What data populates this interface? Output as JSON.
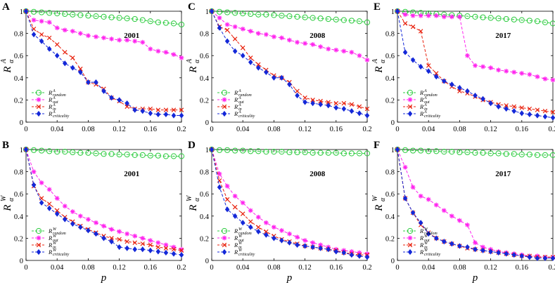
{
  "figure": {
    "xlabel": "p",
    "xticks": [
      "0",
      "0.04",
      "0.08",
      "0.12",
      "0.16",
      "0.2"
    ],
    "yticks": [
      "0",
      "0.2",
      "0.4",
      "0.6",
      "0.8",
      "1"
    ],
    "colors": {
      "random": "#2ecc40",
      "out": "#ff22ee",
      "in": "#e8200c",
      "criticality": "#1428d8"
    }
  },
  "chart_data": [
    {
      "panel": "A",
      "type": "line",
      "year": "2001",
      "ylabel": "R",
      "ylabel_sub": "α",
      "ylabel_sup": "A",
      "xlim": [
        0,
        0.2
      ],
      "ylim": [
        0,
        1
      ],
      "x": [
        0,
        0.01,
        0.02,
        0.03,
        0.04,
        0.05,
        0.06,
        0.07,
        0.08,
        0.09,
        0.1,
        0.11,
        0.12,
        0.13,
        0.14,
        0.15,
        0.16,
        0.17,
        0.18,
        0.19,
        0.2
      ],
      "series": [
        {
          "key": "random",
          "name": "R^A_random",
          "label_main": "R",
          "label_sup": "A",
          "label_sub": "random",
          "values": [
            1,
            0.995,
            0.99,
            0.985,
            0.98,
            0.975,
            0.97,
            0.965,
            0.96,
            0.955,
            0.95,
            0.945,
            0.94,
            0.935,
            0.93,
            0.92,
            0.91,
            0.9,
            0.895,
            0.89,
            0.88
          ]
        },
        {
          "key": "out",
          "name": "R^A_out",
          "label_main": "R",
          "label_sup": "A",
          "label_sub": "out",
          "values": [
            1,
            0.92,
            0.91,
            0.9,
            0.85,
            0.83,
            0.82,
            0.8,
            0.78,
            0.77,
            0.76,
            0.75,
            0.74,
            0.74,
            0.73,
            0.72,
            0.66,
            0.64,
            0.63,
            0.61,
            0.58
          ]
        },
        {
          "key": "in",
          "name": "R^A_in",
          "label_main": "R",
          "label_sup": "A",
          "label_sub": "in",
          "values": [
            1,
            0.84,
            0.79,
            0.76,
            0.7,
            0.63,
            0.58,
            0.48,
            0.36,
            0.34,
            0.3,
            0.22,
            0.19,
            0.14,
            0.12,
            0.12,
            0.12,
            0.11,
            0.11,
            0.11,
            0.11
          ]
        },
        {
          "key": "criticality",
          "name": "R^A_criticality",
          "label_main": "R",
          "label_sup": "A",
          "label_sub": "criticality",
          "values": [
            1,
            0.79,
            0.73,
            0.66,
            0.6,
            0.53,
            0.49,
            0.45,
            0.36,
            0.36,
            0.28,
            0.22,
            0.2,
            0.17,
            0.11,
            0.1,
            0.08,
            0.07,
            0.07,
            0.06,
            0.06
          ]
        }
      ]
    },
    {
      "panel": "B",
      "type": "line",
      "year": "2001",
      "ylabel": "R",
      "ylabel_sub": "α",
      "ylabel_sup": "W",
      "xlim": [
        0,
        0.2
      ],
      "ylim": [
        0,
        1
      ],
      "x": [
        0,
        0.01,
        0.02,
        0.03,
        0.04,
        0.05,
        0.06,
        0.07,
        0.08,
        0.09,
        0.1,
        0.11,
        0.12,
        0.13,
        0.14,
        0.15,
        0.16,
        0.17,
        0.18,
        0.19,
        0.2
      ],
      "series": [
        {
          "key": "random",
          "name": "R^W_random",
          "label_main": "R",
          "label_sup": "W",
          "label_sub": "random",
          "values": [
            1,
            0.995,
            0.99,
            0.985,
            0.98,
            0.98,
            0.975,
            0.97,
            0.97,
            0.965,
            0.96,
            0.96,
            0.955,
            0.955,
            0.95,
            0.95,
            0.945,
            0.945,
            0.94,
            0.94,
            0.94
          ]
        },
        {
          "key": "out",
          "name": "R^W_out",
          "label_main": "R",
          "label_sup": "W",
          "label_sub": "out",
          "values": [
            1,
            0.8,
            0.7,
            0.64,
            0.56,
            0.49,
            0.44,
            0.4,
            0.37,
            0.34,
            0.31,
            0.28,
            0.26,
            0.24,
            0.22,
            0.2,
            0.18,
            0.16,
            0.14,
            0.12,
            0.1
          ]
        },
        {
          "key": "in",
          "name": "R^W_in",
          "label_main": "R",
          "label_sup": "W",
          "label_sub": "in",
          "values": [
            1,
            0.67,
            0.56,
            0.51,
            0.45,
            0.39,
            0.35,
            0.31,
            0.28,
            0.25,
            0.22,
            0.2,
            0.19,
            0.17,
            0.16,
            0.15,
            0.14,
            0.12,
            0.11,
            0.1,
            0.09
          ]
        },
        {
          "key": "criticality",
          "name": "R^W_criticality",
          "label_main": "R",
          "label_sup": "W",
          "label_sub": "criticality",
          "values": [
            1,
            0.68,
            0.52,
            0.47,
            0.42,
            0.37,
            0.33,
            0.3,
            0.27,
            0.24,
            0.2,
            0.17,
            0.12,
            0.11,
            0.1,
            0.1,
            0.09,
            0.08,
            0.07,
            0.06,
            0.05
          ]
        }
      ]
    },
    {
      "panel": "C",
      "type": "line",
      "year": "2008",
      "ylabel": "R",
      "ylabel_sub": "α",
      "ylabel_sup": "A",
      "xlim": [
        0,
        0.2
      ],
      "ylim": [
        0,
        1
      ],
      "x": [
        0,
        0.01,
        0.02,
        0.03,
        0.04,
        0.05,
        0.06,
        0.07,
        0.08,
        0.09,
        0.1,
        0.11,
        0.12,
        0.13,
        0.14,
        0.15,
        0.16,
        0.17,
        0.18,
        0.19,
        0.2
      ],
      "series": [
        {
          "key": "random",
          "name": "R^A_random",
          "label_main": "R",
          "label_sup": "A",
          "label_sub": "random",
          "values": [
            1,
            0.995,
            0.99,
            0.985,
            0.98,
            0.975,
            0.97,
            0.97,
            0.965,
            0.96,
            0.955,
            0.95,
            0.945,
            0.94,
            0.935,
            0.93,
            0.925,
            0.92,
            0.915,
            0.91,
            0.9
          ]
        },
        {
          "key": "out",
          "name": "R^A_out",
          "label_main": "R",
          "label_sup": "A",
          "label_sub": "out",
          "values": [
            1,
            0.94,
            0.88,
            0.86,
            0.84,
            0.82,
            0.8,
            0.79,
            0.77,
            0.76,
            0.74,
            0.72,
            0.71,
            0.7,
            0.68,
            0.66,
            0.65,
            0.64,
            0.63,
            0.6,
            0.56
          ]
        },
        {
          "key": "in",
          "name": "R^A_in",
          "label_main": "R",
          "label_sup": "A",
          "label_sub": "in",
          "values": [
            1,
            0.86,
            0.83,
            0.75,
            0.67,
            0.58,
            0.52,
            0.47,
            0.42,
            0.4,
            0.36,
            0.28,
            0.22,
            0.2,
            0.19,
            0.18,
            0.17,
            0.17,
            0.16,
            0.14,
            0.12
          ]
        },
        {
          "key": "criticality",
          "name": "R^A_criticality",
          "label_main": "R",
          "label_sup": "A",
          "label_sub": "criticality",
          "values": [
            1,
            0.85,
            0.73,
            0.64,
            0.6,
            0.54,
            0.49,
            0.45,
            0.4,
            0.4,
            0.34,
            0.24,
            0.18,
            0.17,
            0.16,
            0.15,
            0.13,
            0.12,
            0.1,
            0.08,
            0.06
          ]
        }
      ]
    },
    {
      "panel": "D",
      "type": "line",
      "year": "2008",
      "ylabel": "R",
      "ylabel_sub": "α",
      "ylabel_sup": "W",
      "xlim": [
        0,
        0.2
      ],
      "ylim": [
        0,
        1
      ],
      "x": [
        0,
        0.01,
        0.02,
        0.03,
        0.04,
        0.05,
        0.06,
        0.07,
        0.08,
        0.09,
        0.1,
        0.11,
        0.12,
        0.13,
        0.14,
        0.15,
        0.16,
        0.17,
        0.18,
        0.19,
        0.2
      ],
      "series": [
        {
          "key": "random",
          "name": "R^W_random",
          "label_main": "R",
          "label_sup": "W",
          "label_sub": "random",
          "values": [
            1,
            0.995,
            0.995,
            0.99,
            0.99,
            0.985,
            0.985,
            0.98,
            0.98,
            0.98,
            0.975,
            0.975,
            0.975,
            0.97,
            0.97,
            0.97,
            0.97,
            0.965,
            0.965,
            0.965,
            0.965
          ]
        },
        {
          "key": "out",
          "name": "R^W_out",
          "label_main": "R",
          "label_sup": "W",
          "label_sub": "out",
          "values": [
            1,
            0.78,
            0.67,
            0.58,
            0.52,
            0.45,
            0.39,
            0.34,
            0.3,
            0.27,
            0.24,
            0.21,
            0.18,
            0.16,
            0.14,
            0.12,
            0.1,
            0.09,
            0.08,
            0.07,
            0.06
          ]
        },
        {
          "key": "in",
          "name": "R^W_in",
          "label_main": "R",
          "label_sup": "W",
          "label_sub": "in",
          "values": [
            1,
            0.72,
            0.55,
            0.48,
            0.42,
            0.35,
            0.3,
            0.26,
            0.22,
            0.19,
            0.17,
            0.15,
            0.13,
            0.12,
            0.11,
            0.1,
            0.09,
            0.07,
            0.06,
            0.05,
            0.05
          ]
        },
        {
          "key": "criticality",
          "name": "R^W_criticality",
          "label_main": "R",
          "label_sup": "W",
          "label_sub": "criticality",
          "values": [
            1,
            0.66,
            0.46,
            0.4,
            0.34,
            0.3,
            0.26,
            0.23,
            0.2,
            0.18,
            0.16,
            0.14,
            0.13,
            0.12,
            0.11,
            0.1,
            0.08,
            0.07,
            0.05,
            0.04,
            0.03
          ]
        }
      ]
    },
    {
      "panel": "E",
      "type": "line",
      "year": "2017",
      "ylabel": "R",
      "ylabel_sub": "α",
      "ylabel_sup": "A",
      "xlim": [
        0,
        0.2
      ],
      "ylim": [
        0,
        1
      ],
      "x": [
        0,
        0.01,
        0.02,
        0.03,
        0.04,
        0.05,
        0.06,
        0.07,
        0.08,
        0.09,
        0.1,
        0.11,
        0.12,
        0.13,
        0.14,
        0.15,
        0.16,
        0.17,
        0.18,
        0.19,
        0.2
      ],
      "series": [
        {
          "key": "random",
          "name": "R^A_random",
          "label_main": "R",
          "label_sup": "A",
          "label_sub": "random",
          "values": [
            1,
            0.995,
            0.99,
            0.985,
            0.98,
            0.975,
            0.97,
            0.965,
            0.96,
            0.955,
            0.95,
            0.945,
            0.94,
            0.935,
            0.93,
            0.925,
            0.92,
            0.915,
            0.91,
            0.9,
            0.89
          ]
        },
        {
          "key": "out",
          "name": "R^A_out",
          "label_main": "R",
          "label_sup": "A",
          "label_sub": "out",
          "values": [
            1,
            0.97,
            0.96,
            0.96,
            0.96,
            0.96,
            0.95,
            0.95,
            0.95,
            0.6,
            0.51,
            0.5,
            0.49,
            0.47,
            0.46,
            0.45,
            0.44,
            0.43,
            0.41,
            0.39,
            0.38
          ]
        },
        {
          "key": "in",
          "name": "R^A_in",
          "label_main": "R",
          "label_sup": "A",
          "label_sub": "in",
          "values": [
            1,
            0.89,
            0.86,
            0.82,
            0.51,
            0.44,
            0.37,
            0.32,
            0.28,
            0.26,
            0.23,
            0.2,
            0.18,
            0.16,
            0.15,
            0.14,
            0.13,
            0.12,
            0.11,
            0.1,
            0.09
          ]
        },
        {
          "key": "criticality",
          "name": "R^A_criticality",
          "label_main": "R",
          "label_sup": "A",
          "label_sub": "criticality",
          "values": [
            1,
            0.63,
            0.56,
            0.5,
            0.46,
            0.41,
            0.37,
            0.34,
            0.31,
            0.28,
            0.24,
            0.21,
            0.17,
            0.14,
            0.12,
            0.1,
            0.08,
            0.07,
            0.06,
            0.05,
            0.04
          ]
        }
      ]
    },
    {
      "panel": "F",
      "type": "line",
      "year": "2017",
      "ylabel": "R",
      "ylabel_sub": "α",
      "ylabel_sup": "W",
      "xlim": [
        0,
        0.2
      ],
      "ylim": [
        0,
        1
      ],
      "x": [
        0,
        0.01,
        0.02,
        0.03,
        0.04,
        0.05,
        0.06,
        0.07,
        0.08,
        0.09,
        0.1,
        0.11,
        0.12,
        0.13,
        0.14,
        0.15,
        0.16,
        0.17,
        0.18,
        0.19,
        0.2
      ],
      "series": [
        {
          "key": "random",
          "name": "R^W_random",
          "label_main": "R",
          "label_sup": "W",
          "label_sub": "random",
          "values": [
            1,
            0.995,
            0.99,
            0.99,
            0.985,
            0.985,
            0.98,
            0.98,
            0.975,
            0.975,
            0.97,
            0.97,
            0.965,
            0.965,
            0.96,
            0.96,
            0.955,
            0.955,
            0.95,
            0.95,
            0.95
          ]
        },
        {
          "key": "out",
          "name": "R^W_out",
          "label_main": "R",
          "label_sup": "W",
          "label_sub": "out",
          "values": [
            1,
            0.84,
            0.66,
            0.58,
            0.55,
            0.5,
            0.45,
            0.4,
            0.36,
            0.32,
            0.16,
            0.12,
            0.1,
            0.08,
            0.07,
            0.06,
            0.05,
            0.04,
            0.04,
            0.03,
            0.03
          ]
        },
        {
          "key": "in",
          "name": "R^W_in",
          "label_main": "R",
          "label_sup": "W",
          "label_sub": "in",
          "values": [
            1,
            0.56,
            0.43,
            0.32,
            0.25,
            0.2,
            0.17,
            0.15,
            0.13,
            0.11,
            0.1,
            0.09,
            0.08,
            0.07,
            0.06,
            0.05,
            0.04,
            0.04,
            0.03,
            0.03,
            0.03
          ]
        },
        {
          "key": "criticality",
          "name": "R^W_criticality",
          "label_main": "R",
          "label_sup": "W",
          "label_sub": "criticality",
          "values": [
            1,
            0.56,
            0.43,
            0.34,
            0.24,
            0.2,
            0.17,
            0.15,
            0.13,
            0.12,
            0.1,
            0.09,
            0.08,
            0.07,
            0.06,
            0.05,
            0.04,
            0.03,
            0.02,
            0.02,
            0.02
          ]
        }
      ]
    }
  ]
}
